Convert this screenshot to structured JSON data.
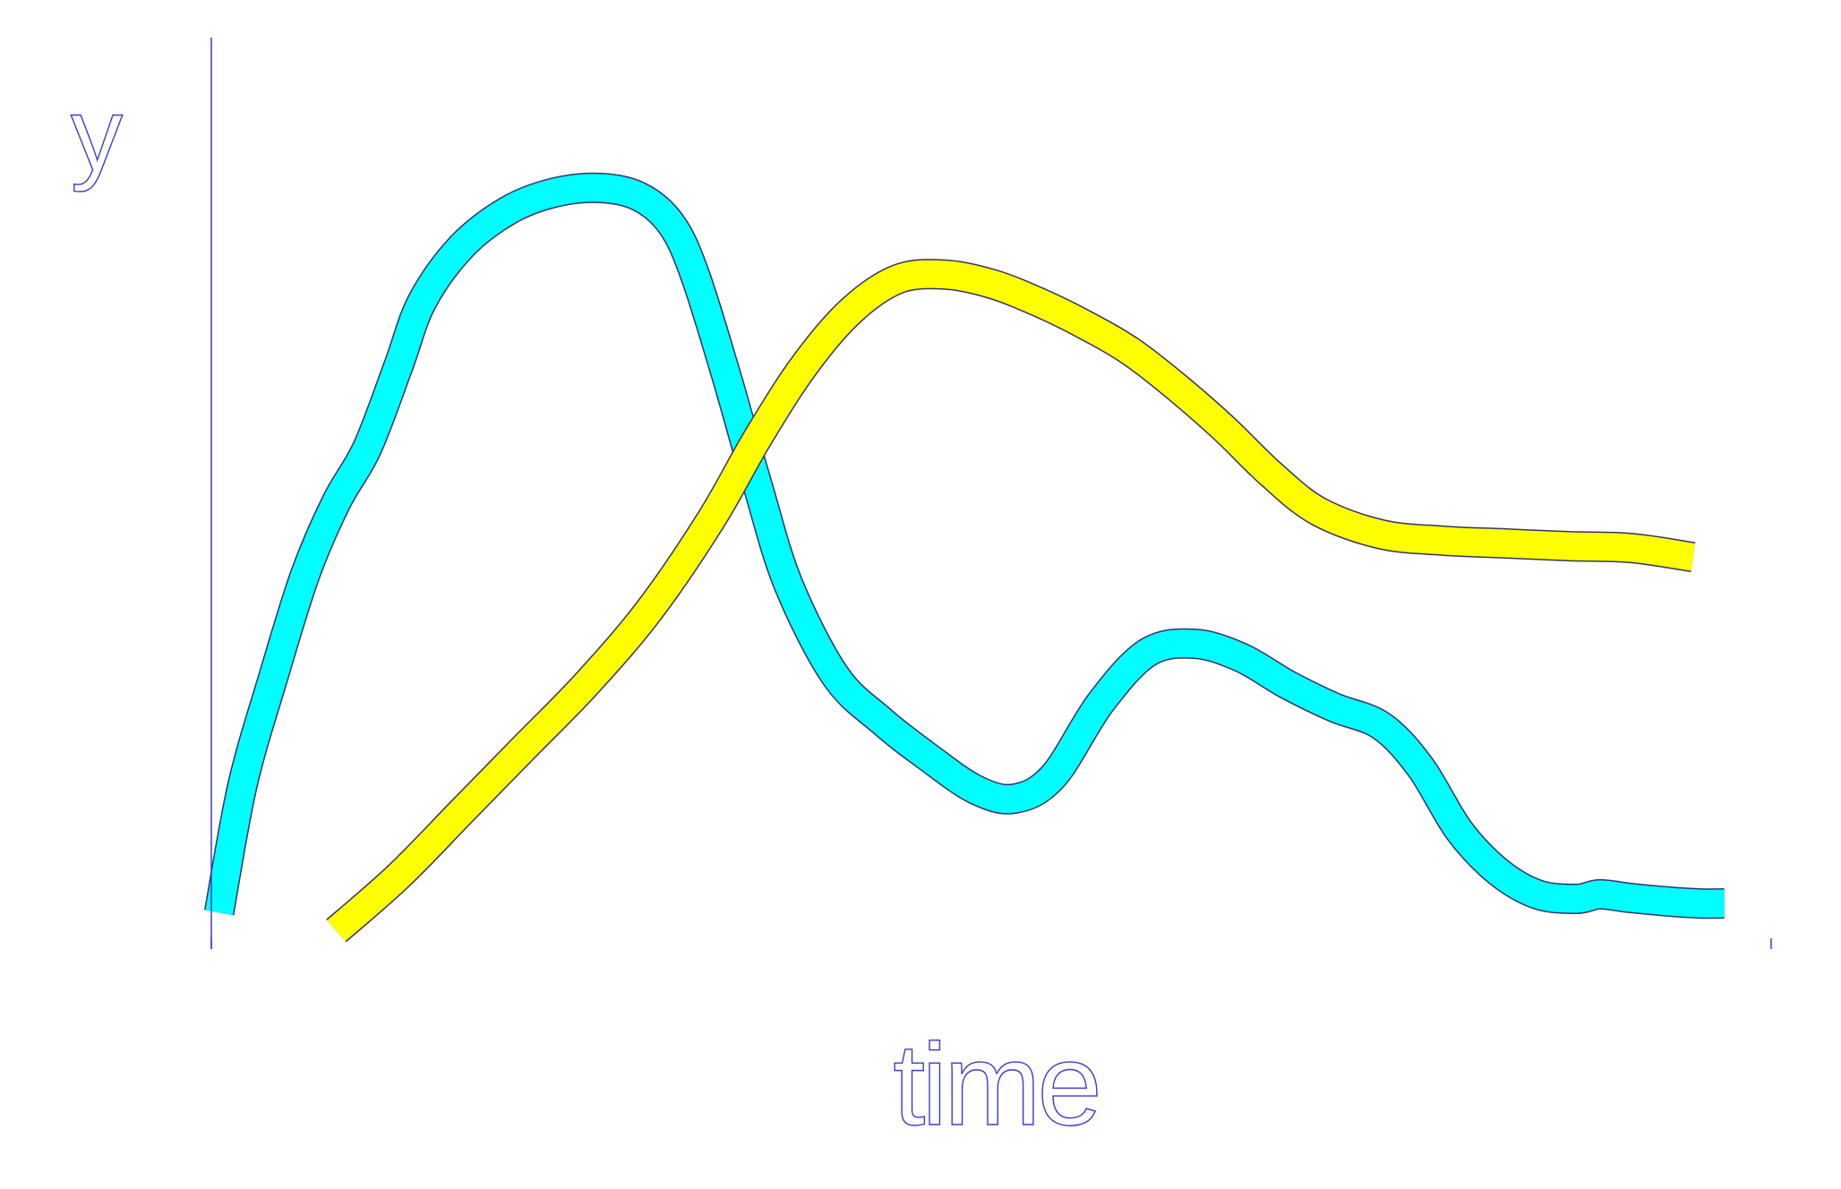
{
  "chart_data": {
    "type": "line",
    "title": "",
    "xlabel": "time",
    "ylabel": "y",
    "xlim": [
      0,
      100
    ],
    "ylim": [
      0,
      100
    ],
    "grid": false,
    "legend": "none",
    "colors": {
      "axis": "#3a3acb",
      "outline": "#333366"
    },
    "series": [
      {
        "color": "#00ffff",
        "x": [
          0.5,
          2,
          4,
          6,
          8,
          10,
          12,
          13.5,
          16,
          19,
          22,
          25,
          27.5,
          29.5,
          31,
          33,
          35,
          37,
          40,
          43,
          46,
          49,
          51.5,
          54,
          57,
          60,
          63,
          66,
          69,
          72,
          75,
          77.5,
          80,
          82.5,
          85,
          87.5,
          89,
          91,
          93.5,
          95.5,
          97
        ],
        "y": [
          4,
          18,
          30,
          41,
          49,
          55,
          64,
          71,
          77,
          81,
          83,
          83.5,
          82.5,
          79.5,
          74,
          63,
          51,
          40,
          30,
          25,
          21,
          17.5,
          16.5,
          19,
          27,
          32.5,
          33.5,
          32,
          29,
          26.5,
          24.5,
          20,
          13,
          8.5,
          6,
          5.5,
          6,
          5.6,
          5.2,
          5,
          5
        ]
      },
      {
        "color": "#ffff00",
        "x": [
          8,
          12,
          16,
          20,
          24,
          28,
          32,
          35,
          38,
          41,
          44,
          47,
          50,
          53,
          56,
          59,
          62,
          65,
          68,
          71,
          75,
          79,
          83,
          87,
          91,
          95
        ],
        "y": [
          2,
          8,
          15,
          22,
          29,
          37,
          47,
          56,
          64,
          70,
          73.5,
          74,
          73,
          71,
          68.5,
          65.5,
          61.5,
          57,
          52,
          48,
          45.5,
          44.8,
          44.5,
          44.2,
          44,
          43
        ]
      }
    ]
  }
}
